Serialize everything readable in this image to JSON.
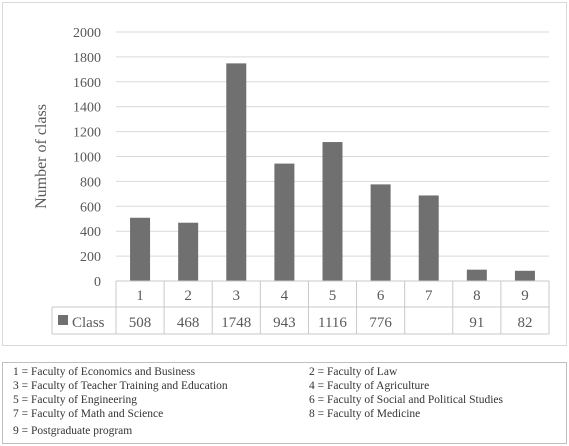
{
  "chart_data": {
    "type": "bar",
    "categories": [
      "1",
      "2",
      "3",
      "4",
      "5",
      "6",
      "7",
      "8",
      "9"
    ],
    "series": [
      {
        "name": "Class",
        "values": [
          508,
          468,
          1748,
          943,
          1116,
          776,
          687,
          91,
          82
        ],
        "color": "#707070"
      }
    ],
    "data_labels": [
      "508",
      "468",
      "1748",
      "943",
      "1116",
      "776",
      "",
      "91",
      "82"
    ],
    "title": "",
    "xlabel": "",
    "ylabel": "Number of class",
    "ylim": [
      0,
      2000
    ],
    "yticks": [
      0,
      200,
      400,
      600,
      800,
      1000,
      1200,
      1400,
      1600,
      1800,
      2000
    ],
    "grid": true,
    "data_table": true,
    "bar_color": "#707070"
  },
  "key": [
    "1 = Faculty of Economics and Business",
    "2 = Faculty of Law",
    "3 = Faculty of Teacher Training and Education",
    "4 = Faculty of Agriculture",
    "5 = Faculty of Engineering",
    "6 = Faculty of Social and Political Studies",
    "7 = Faculty of Math and Science",
    "8 = Faculty of Medicine",
    "9 = Postgraduate program"
  ]
}
